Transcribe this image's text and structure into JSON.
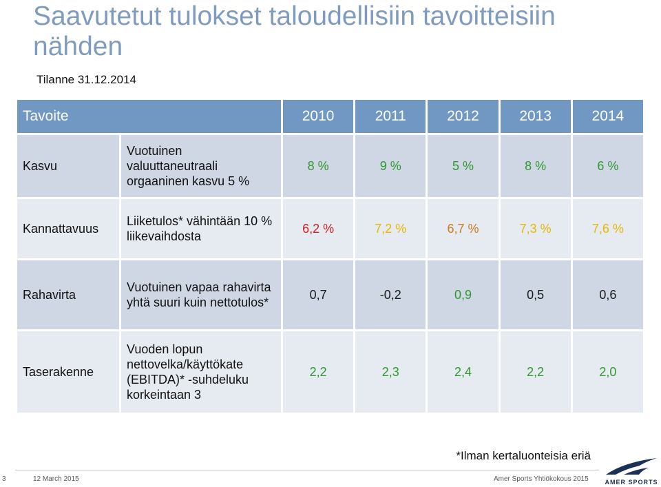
{
  "title": "Saavutetut tulokset taloudellisiin tavoitteisiin nähden",
  "subtitle": "Tilanne 31.12.2014",
  "colors": {
    "green": "#2e9a2e",
    "orange": "#cc7a1a",
    "yellow": "#e6b800",
    "red": "#d42020",
    "dark": "#1a1a1a"
  },
  "table": {
    "headers": [
      "Tavoite",
      "2010",
      "2011",
      "2012",
      "2013",
      "2014"
    ],
    "rows": [
      {
        "category": "Kasvu",
        "description": "Vuotuinen valuuttaneutraali orgaaninen kasvu 5 %",
        "values": [
          {
            "text": "8 %",
            "color": "#2e9a2e"
          },
          {
            "text": "9 %",
            "color": "#2e9a2e"
          },
          {
            "text": "5 %",
            "color": "#2e9a2e"
          },
          {
            "text": "8 %",
            "color": "#2e9a2e"
          },
          {
            "text": "6 %",
            "color": "#2e9a2e"
          }
        ]
      },
      {
        "category": "Kannattavuus",
        "description": "Liiketulos* vähintään 10 % liikevaihdosta",
        "values": [
          {
            "text": "6,2 %",
            "color": "#d42020"
          },
          {
            "text": "7,2 %",
            "color": "#e6b800"
          },
          {
            "text": "6,7 %",
            "color": "#cc7a1a"
          },
          {
            "text": "7,3 %",
            "color": "#e6b800"
          },
          {
            "text": "7,6 %",
            "color": "#e6b800"
          }
        ]
      },
      {
        "category": "Rahavirta",
        "description": "Vuotuinen vapaa rahavirta yhtä suuri kuin nettotulos*",
        "values": [
          {
            "text": "0,7",
            "color": "#1a1a1a"
          },
          {
            "text": "-0,2",
            "color": "#1a1a1a"
          },
          {
            "text": "0,9",
            "color": "#2e9a2e"
          },
          {
            "text": "0,5",
            "color": "#1a1a1a"
          },
          {
            "text": "0,6",
            "color": "#1a1a1a"
          }
        ]
      },
      {
        "category": "Taserakenne",
        "description": "Vuoden lopun nettovelka/käyttökate (EBITDA)* -suhdeluku korkeintaan 3",
        "values": [
          {
            "text": "2,2",
            "color": "#2e9a2e"
          },
          {
            "text": "2,3",
            "color": "#2e9a2e"
          },
          {
            "text": "2,4",
            "color": "#2e9a2e"
          },
          {
            "text": "2,2",
            "color": "#2e9a2e"
          },
          {
            "text": "2,0",
            "color": "#2e9a2e"
          }
        ]
      }
    ]
  },
  "footnote": "*Ilman kertaluonteisia eriä",
  "footer": {
    "page_number": "3",
    "date": "12 March 2015",
    "company": "Amer Sports Yhtiökokous 2015",
    "logo_text": "AMER SPORTS",
    "logo_icon": "amer-sports-logo-icon"
  }
}
